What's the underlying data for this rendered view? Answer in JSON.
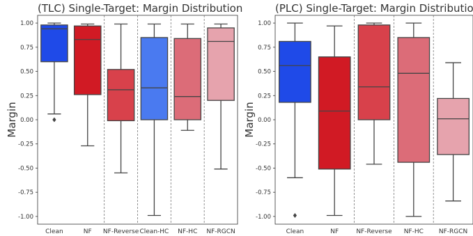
{
  "colors": {
    "Clean": "#1f4ae8",
    "NF": "#d11a24",
    "NF-Reverse": "#d8414b",
    "Clean-HC": "#4a7af0",
    "NF-HC": "#dc6c78",
    "NF-RGCN": "#e6a3ad",
    "whisker": "#444444",
    "separator": "#777777",
    "frame": "#333333"
  },
  "chart_data": [
    {
      "type": "box",
      "title": "(TLC) Single-Target: Margin Distribution",
      "ylabel": "Margin",
      "xlabel": "",
      "ylim": [
        -1.08,
        1.08
      ],
      "yticks": [
        "1.00",
        "0.75",
        "0.50",
        "0.25",
        "0.00",
        "-0.25",
        "-0.50",
        "-0.75",
        "-1.00"
      ],
      "ytick_values": [
        1.0,
        0.75,
        0.5,
        0.25,
        0.0,
        -0.25,
        -0.5,
        -0.75,
        -1.0
      ],
      "categories": [
        "Clean",
        "NF",
        "NF-Reverse",
        "Clean-HC",
        "NF-HC",
        "NF-RGCN"
      ],
      "boxes": [
        {
          "name": "Clean",
          "whislo": 0.06,
          "q1": 0.6,
          "med": 0.94,
          "q3": 0.98,
          "whishi": 1.0,
          "fliers": [
            0.0
          ]
        },
        {
          "name": "NF",
          "whislo": -0.27,
          "q1": 0.26,
          "med": 0.83,
          "q3": 0.97,
          "whishi": 0.99,
          "fliers": []
        },
        {
          "name": "NF-Reverse",
          "whislo": -0.55,
          "q1": -0.01,
          "med": 0.31,
          "q3": 0.52,
          "whishi": 0.99,
          "fliers": []
        },
        {
          "name": "Clean-HC",
          "whislo": -0.99,
          "q1": 0.0,
          "med": 0.33,
          "q3": 0.85,
          "whishi": 0.99,
          "fliers": []
        },
        {
          "name": "NF-HC",
          "whislo": -0.11,
          "q1": 0.0,
          "med": 0.24,
          "q3": 0.84,
          "whishi": 0.99,
          "fliers": []
        },
        {
          "name": "NF-RGCN",
          "whislo": -0.51,
          "q1": 0.2,
          "med": 0.81,
          "q3": 0.95,
          "whishi": 0.99,
          "fliers": []
        }
      ],
      "separators_after": [
        2,
        3,
        4,
        5
      ]
    },
    {
      "type": "box",
      "title": "(PLC) Single-Target: Margin Distribution",
      "ylabel": "Margin",
      "xlabel": "",
      "ylim": [
        -1.08,
        1.08
      ],
      "yticks": [
        "1.00",
        "0.75",
        "0.50",
        "0.25",
        "0.00",
        "-0.25",
        "-0.50",
        "-0.75",
        "-1.00"
      ],
      "ytick_values": [
        1.0,
        0.75,
        0.5,
        0.25,
        0.0,
        -0.25,
        -0.5,
        -0.75,
        -1.0
      ],
      "categories": [
        "Clean",
        "NF",
        "NF-Reverse",
        "NF-HC",
        "NF-RGCN"
      ],
      "boxes": [
        {
          "name": "Clean",
          "whislo": -0.6,
          "q1": 0.18,
          "med": 0.56,
          "q3": 0.81,
          "whishi": 1.0,
          "fliers": [
            -0.99
          ]
        },
        {
          "name": "NF",
          "whislo": -0.99,
          "q1": -0.51,
          "med": 0.09,
          "q3": 0.65,
          "whishi": 0.97,
          "fliers": []
        },
        {
          "name": "NF-Reverse",
          "whislo": -0.46,
          "q1": 0.0,
          "med": 0.34,
          "q3": 0.98,
          "whishi": 1.0,
          "fliers": []
        },
        {
          "name": "NF-HC",
          "whislo": -1.0,
          "q1": -0.44,
          "med": 0.48,
          "q3": 0.85,
          "whishi": 1.0,
          "fliers": []
        },
        {
          "name": "NF-RGCN",
          "whislo": -0.84,
          "q1": -0.36,
          "med": 0.01,
          "q3": 0.22,
          "whishi": 0.59,
          "fliers": []
        }
      ],
      "separators_after": [
        2,
        3,
        4
      ]
    }
  ]
}
